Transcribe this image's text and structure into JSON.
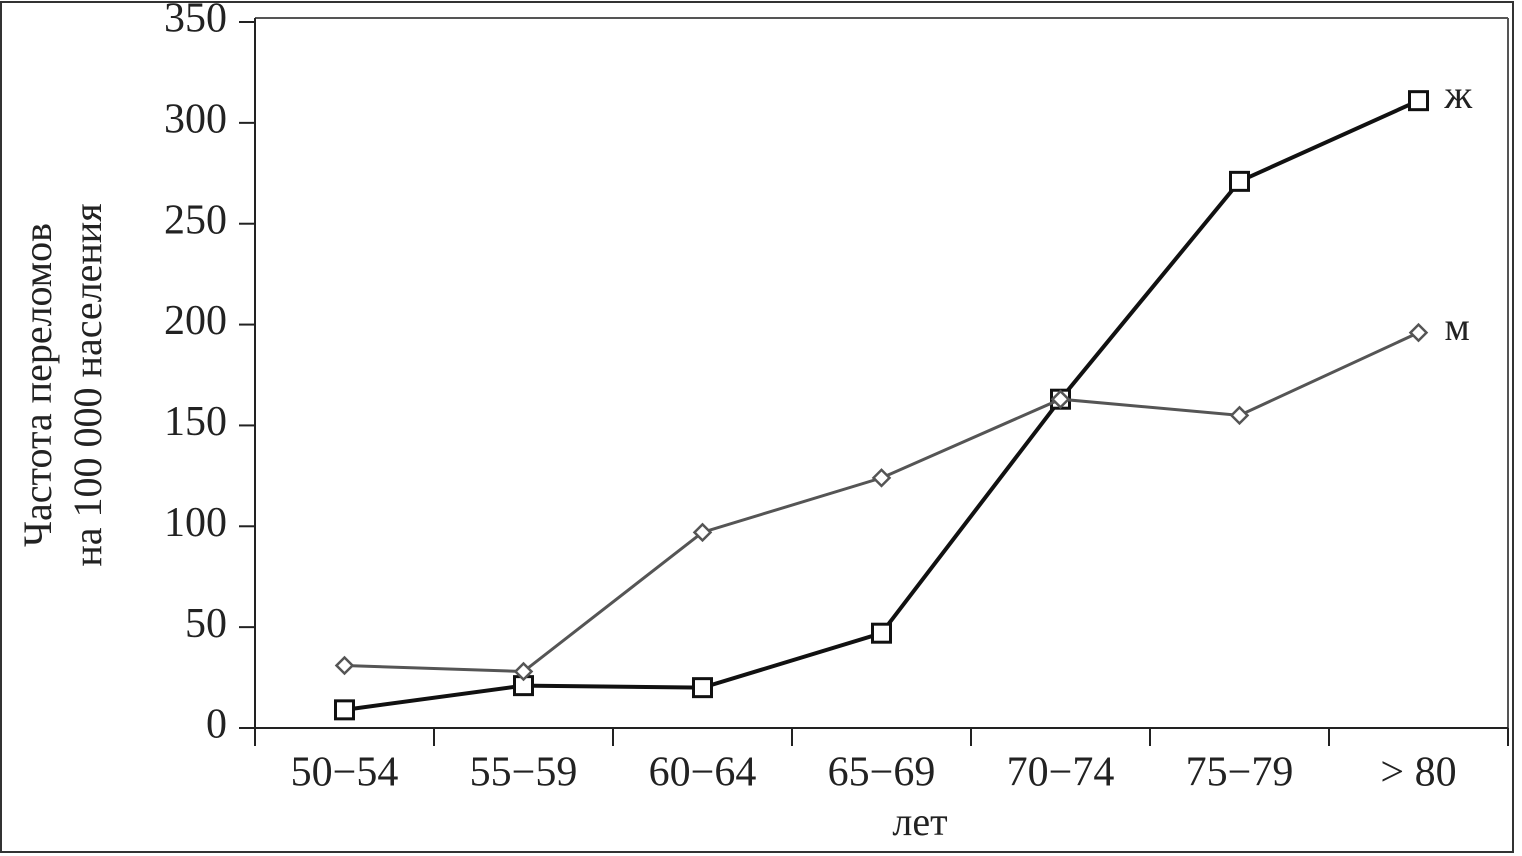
{
  "chart_data": {
    "type": "line",
    "ylabel": [
      "Частота переломов",
      "на 100 000 населения"
    ],
    "xlabel": "лет",
    "categories": [
      "50−54",
      "55−59",
      "60−64",
      "65−69",
      "70−74",
      "75−79",
      "> 80"
    ],
    "series": [
      {
        "name": "ж",
        "color": "#111111",
        "marker": "square",
        "values": [
          9,
          21,
          20,
          47,
          163,
          271,
          311
        ]
      },
      {
        "name": "м",
        "color": "#555555",
        "marker": "diamond",
        "values": [
          31,
          28,
          97,
          124,
          163,
          155,
          196
        ]
      }
    ],
    "ylim": [
      0,
      350
    ],
    "yticks": [
      0,
      50,
      100,
      150,
      200,
      250,
      300,
      350
    ],
    "grid": false
  }
}
